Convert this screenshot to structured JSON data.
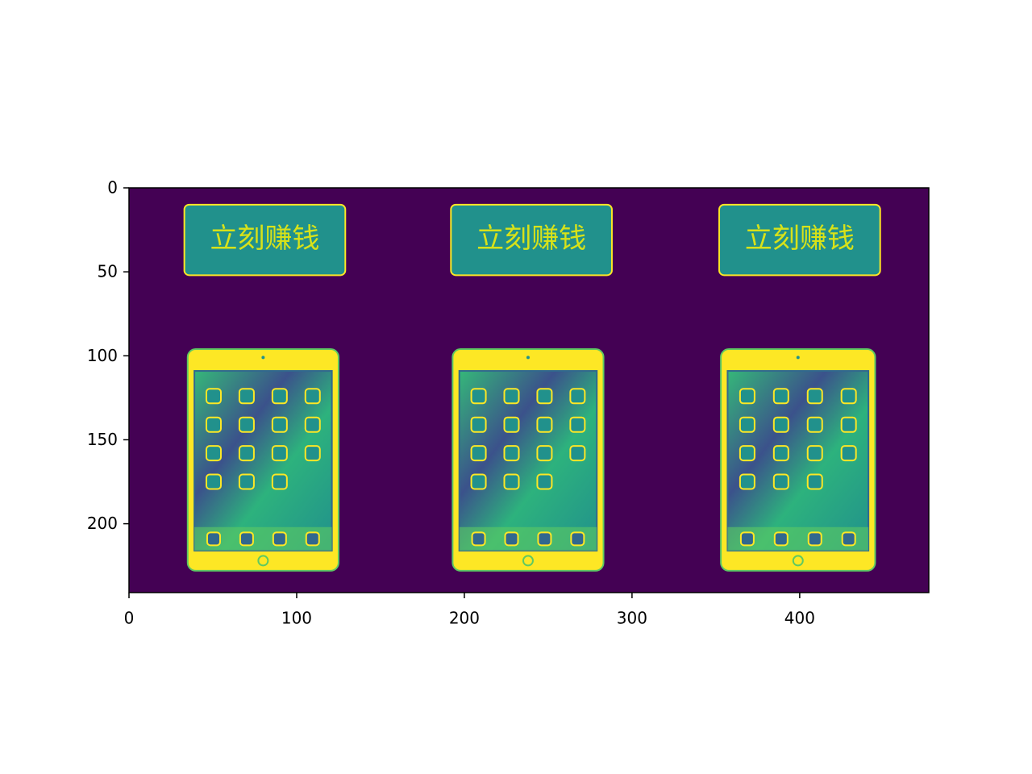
{
  "chart_data": {
    "type": "image",
    "annotations": [
      "立刻赚钱",
      "立刻赚钱",
      "立刻赚钱"
    ],
    "xlim": [
      0,
      477
    ],
    "ylim": [
      241,
      0
    ],
    "xticks": [
      0,
      100,
      200,
      300,
      400
    ],
    "yticks": [
      0,
      50,
      100,
      150,
      200
    ]
  }
}
